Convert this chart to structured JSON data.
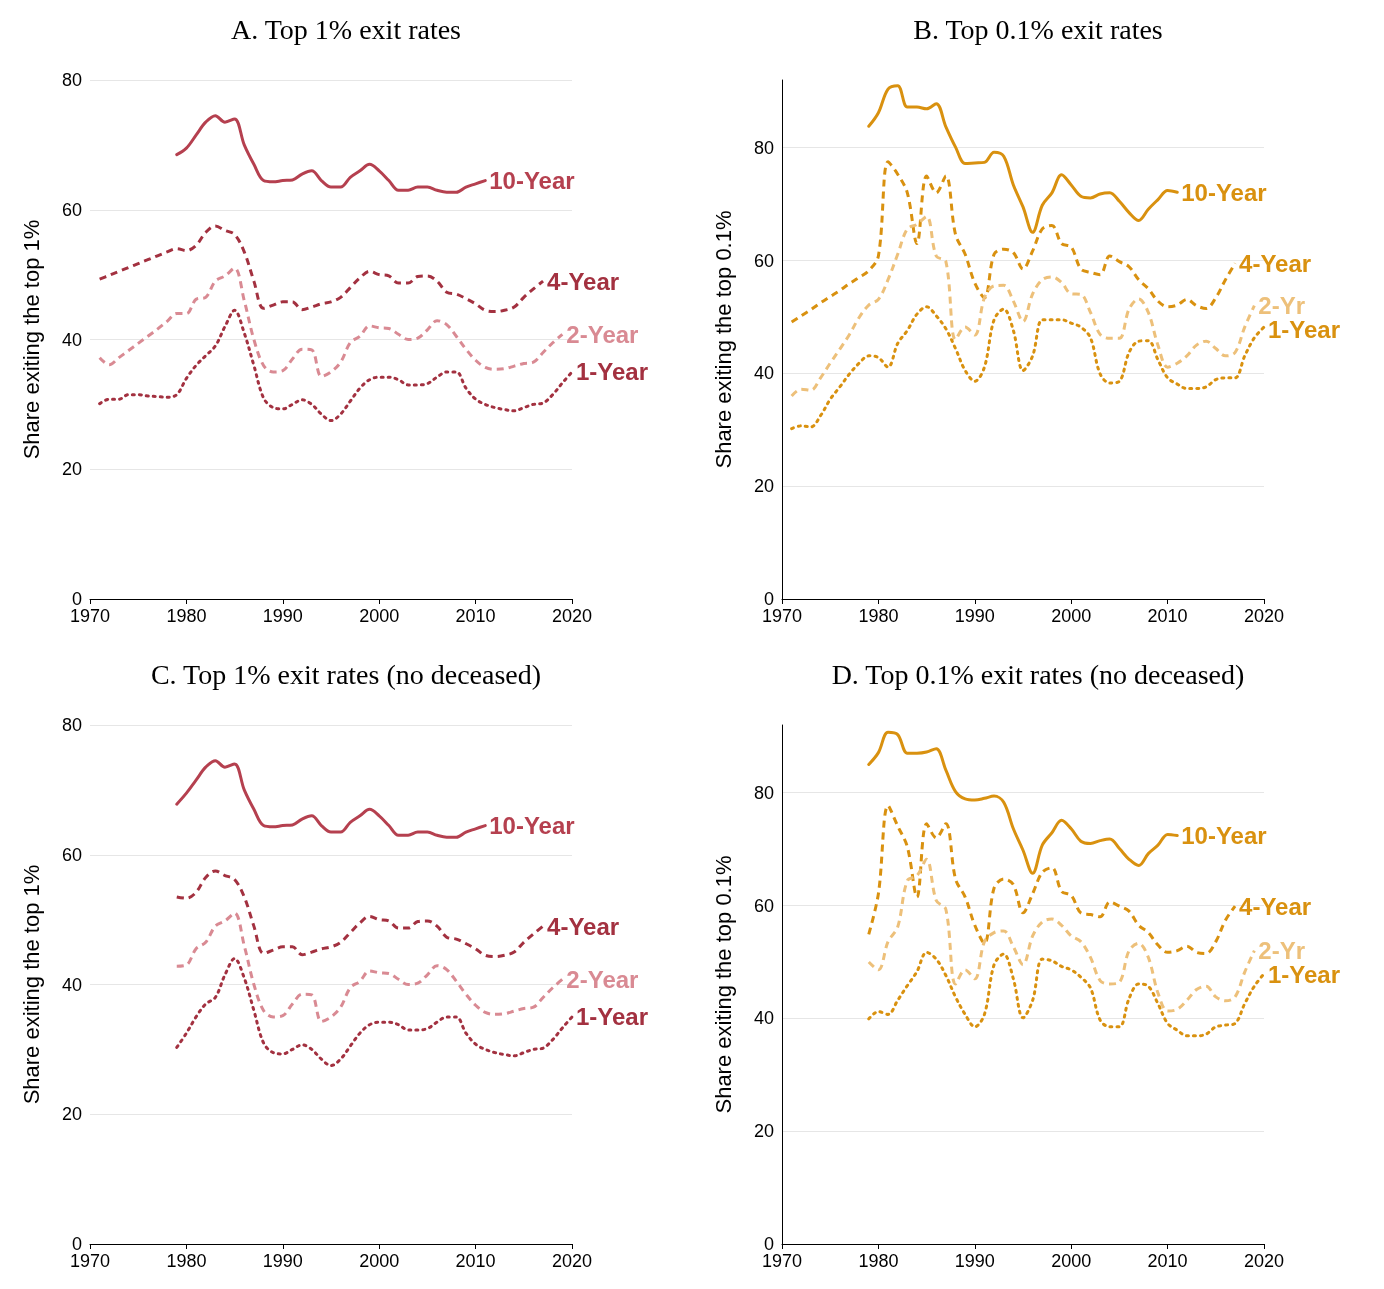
{
  "chart_data": [
    {
      "type": "line",
      "title": "A. Top 1% exit rates",
      "ylabel": "Share exiting the top 1%",
      "xlim": [
        1970,
        2020
      ],
      "xticks": [
        1970,
        1980,
        1990,
        2000,
        2010,
        2020
      ],
      "ylim": [
        0,
        80
      ],
      "yticks": [
        0,
        20,
        40,
        60,
        80
      ],
      "grid": "y",
      "series": [
        {
          "name": "10-Year",
          "color": "#b5404f",
          "line_style": "solid",
          "x": [
            1979,
            1980,
            1981,
            1982,
            1983,
            1984,
            1985,
            1986,
            1987,
            1988,
            1989,
            1990,
            1991,
            1992,
            1993,
            1994,
            1995,
            1996,
            1997,
            1998,
            1999,
            2000,
            2001,
            2002,
            2003,
            2004,
            2005,
            2006,
            2007,
            2008,
            2009,
            2010,
            2011
          ],
          "values": [
            68.5,
            69.5,
            71.5,
            73.5,
            74.5,
            73.5,
            74,
            70,
            67,
            64.5,
            64.3,
            64.5,
            64.6,
            65.5,
            66,
            64.5,
            63.5,
            63.5,
            65,
            66,
            67,
            66,
            64.5,
            63,
            63,
            63.5,
            63.5,
            63,
            62.7,
            62.7,
            63.5,
            64,
            64.5
          ]
        },
        {
          "name": "4-Year",
          "color": "#a33140",
          "line_style": "dashed",
          "x": [
            1971,
            1972,
            1973,
            1974,
            1975,
            1976,
            1977,
            1978,
            1979,
            1980,
            1981,
            1982,
            1983,
            1984,
            1985,
            1986,
            1987,
            1988,
            1989,
            1990,
            1991,
            1992,
            1993,
            1994,
            1995,
            1996,
            1997,
            1998,
            1999,
            2000,
            2001,
            2002,
            2003,
            2004,
            2005,
            2006,
            2007,
            2008,
            2009,
            2010,
            2011,
            2012,
            2013,
            2014,
            2015,
            2016,
            2017
          ],
          "values": [
            49.3,
            49.9,
            50.5,
            51.1,
            51.7,
            52.3,
            52.9,
            53.5,
            54,
            53.7,
            54.5,
            56.5,
            57.5,
            56.8,
            56.2,
            53.5,
            49,
            44.8,
            45.3,
            45.8,
            45.8,
            44.6,
            45,
            45.5,
            45.8,
            46.5,
            48,
            49.5,
            50.5,
            50,
            49.8,
            48.7,
            48.7,
            49.7,
            49.8,
            49,
            47.3,
            47,
            46.3,
            45.5,
            44.5,
            44.3,
            44.5,
            45,
            46.5,
            47.8,
            49
          ]
        },
        {
          "name": "2-Year",
          "color": "#d98a93",
          "line_style": "dashed",
          "x": [
            1971,
            1972,
            1973,
            1974,
            1975,
            1976,
            1977,
            1978,
            1979,
            1980,
            1981,
            1982,
            1983,
            1984,
            1985,
            1986,
            1987,
            1988,
            1989,
            1990,
            1991,
            1992,
            1993,
            1994,
            1995,
            1996,
            1997,
            1998,
            1999,
            2000,
            2001,
            2002,
            2003,
            2004,
            2005,
            2006,
            2007,
            2008,
            2009,
            2010,
            2011,
            2012,
            2013,
            2014,
            2015,
            2016,
            2017,
            2018,
            2019
          ],
          "values": [
            37.2,
            36.1,
            37.2,
            38.3,
            39.4,
            40.5,
            41.6,
            42.8,
            44,
            44,
            46.2,
            46.5,
            49,
            49.8,
            51,
            46,
            40,
            36,
            35,
            35.2,
            37,
            38.5,
            38.4,
            34.3,
            35,
            36.5,
            39.5,
            40.5,
            42.1,
            41.8,
            41.7,
            40.8,
            40,
            40.2,
            41.5,
            42.9,
            42.3,
            40.5,
            38.5,
            36.8,
            35.7,
            35.4,
            35.5,
            35.9,
            36.3,
            36.5,
            38,
            39.5,
            40.8
          ]
        },
        {
          "name": "1-Year",
          "color": "#a33140",
          "line_style": "dotted",
          "x": [
            1971,
            1972,
            1973,
            1974,
            1975,
            1976,
            1977,
            1978,
            1979,
            1980,
            1981,
            1982,
            1983,
            1984,
            1985,
            1986,
            1987,
            1988,
            1989,
            1990,
            1991,
            1992,
            1993,
            1994,
            1995,
            1996,
            1997,
            1998,
            1999,
            2000,
            2001,
            2002,
            2003,
            2004,
            2005,
            2006,
            2007,
            2008,
            2009,
            2010,
            2011,
            2012,
            2013,
            2014,
            2015,
            2016,
            2017,
            2018,
            2019,
            2020
          ],
          "values": [
            30.1,
            30.8,
            30.8,
            31.5,
            31.5,
            31.3,
            31.2,
            31.1,
            31.5,
            34,
            36,
            37.5,
            39,
            42,
            44.5,
            41,
            36,
            31,
            29.5,
            29.3,
            30,
            30.7,
            30,
            28.5,
            27.5,
            28.5,
            30.5,
            32.5,
            33.8,
            34.2,
            34.2,
            33.8,
            33,
            33,
            33.2,
            34.2,
            35,
            35,
            32.5,
            30.8,
            30,
            29.5,
            29.2,
            29,
            29.5,
            30,
            30.2,
            31.5,
            33.3,
            35
          ]
        }
      ]
    },
    {
      "type": "line",
      "title": "B. Top 0.1% exit rates",
      "ylabel": "Share exiting the top 0.1%",
      "xlim": [
        1970,
        2020
      ],
      "xticks": [
        1970,
        1980,
        1990,
        2000,
        2010,
        2020
      ],
      "ylim": [
        0,
        92
      ],
      "yticks": [
        0,
        20,
        40,
        60,
        80
      ],
      "grid": "y",
      "series": [
        {
          "name": "10-Year",
          "color": "#d9910f",
          "line_style": "solid",
          "x": [
            1979,
            1980,
            1981,
            1982,
            1983,
            1984,
            1985,
            1986,
            1987,
            1988,
            1989,
            1990,
            1991,
            1992,
            1993,
            1994,
            1995,
            1996,
            1997,
            1998,
            1999,
            2000,
            2001,
            2002,
            2003,
            2004,
            2005,
            2006,
            2007,
            2008,
            2009,
            2010,
            2011
          ],
          "values": [
            83.8,
            86.2,
            90.4,
            91,
            87.2,
            87.2,
            86.9,
            87.8,
            83.7,
            80.1,
            77.2,
            77.3,
            77.4,
            79.2,
            78.5,
            73.4,
            69.5,
            65,
            69.8,
            72,
            75.2,
            73.4,
            71.4,
            71.1,
            71.8,
            72,
            70.5,
            68.5,
            67.1,
            69.1,
            70.8,
            72.4,
            72.1
          ]
        },
        {
          "name": "4-Year",
          "color": "#d9910f",
          "line_style": "dashed",
          "x": [
            1971,
            1972,
            1973,
            1974,
            1975,
            1976,
            1977,
            1978,
            1979,
            1980,
            1981,
            1982,
            1983,
            1984,
            1985,
            1986,
            1987,
            1988,
            1989,
            1990,
            1991,
            1992,
            1993,
            1994,
            1995,
            1996,
            1997,
            1998,
            1999,
            2000,
            2001,
            2002,
            2003,
            2004,
            2005,
            2006,
            2007,
            2008,
            2009,
            2010,
            2011,
            2012,
            2013,
            2014,
            2015,
            2016,
            2017
          ],
          "values": [
            49.1,
            50.2,
            51.3,
            52.5,
            53.6,
            54.7,
            55.9,
            57,
            58.2,
            60.8,
            77.5,
            75.3,
            72,
            63,
            75,
            72,
            75,
            64.6,
            61.1,
            56,
            53.4,
            61.1,
            62,
            61.4,
            58.5,
            61.7,
            65.6,
            66.2,
            63,
            62.4,
            58.5,
            57.9,
            57.5,
            60.8,
            59.8,
            58.9,
            56.6,
            55,
            52.8,
            51.8,
            52.1,
            53.1,
            52,
            51.5,
            53.4,
            56.6,
            59.5
          ]
        },
        {
          "name": "2-Yr",
          "color": "#edc07a",
          "line_style": "dashed",
          "x": [
            1971,
            1972,
            1973,
            1974,
            1975,
            1976,
            1977,
            1978,
            1979,
            1980,
            1981,
            1982,
            1983,
            1984,
            1985,
            1986,
            1987,
            1988,
            1989,
            1990,
            1991,
            1992,
            1993,
            1994,
            1995,
            1996,
            1997,
            1998,
            1999,
            2000,
            2001,
            2002,
            2003,
            2004,
            2005,
            2006,
            2007,
            2008,
            2009,
            2010,
            2011,
            2012,
            2013,
            2014,
            2015,
            2016,
            2017,
            2018,
            2019
          ],
          "values": [
            36,
            37.2,
            37,
            39.2,
            41.8,
            44.3,
            46.9,
            49.9,
            52.1,
            53.1,
            56.6,
            61.1,
            65.6,
            66.4,
            67.8,
            60.8,
            59.8,
            46,
            48.2,
            46.8,
            53.4,
            55.5,
            55.6,
            52.8,
            49.2,
            54.1,
            56.6,
            57.1,
            56.1,
            54.1,
            54,
            50.8,
            46.9,
            46.2,
            46.2,
            51.4,
            53.2,
            50.8,
            45,
            41.1,
            41.8,
            43.1,
            45,
            45.7,
            44.4,
            43.1,
            43.7,
            48.2,
            52
          ]
        },
        {
          "name": "1-Year",
          "color": "#d9910f",
          "line_style": "dotted",
          "x": [
            1971,
            1972,
            1973,
            1974,
            1975,
            1976,
            1977,
            1978,
            1979,
            1980,
            1981,
            1982,
            1983,
            1984,
            1985,
            1986,
            1987,
            1988,
            1989,
            1990,
            1991,
            1992,
            1993,
            1994,
            1995,
            1996,
            1997,
            1998,
            1999,
            2000,
            2001,
            2002,
            2003,
            2004,
            2005,
            2006,
            2007,
            2008,
            2009,
            2010,
            2011,
            2012,
            2013,
            2014,
            2015,
            2016,
            2017,
            2018,
            2019,
            2020
          ],
          "values": [
            30.2,
            30.7,
            30.5,
            32.5,
            35.4,
            37.6,
            39.9,
            41.8,
            43.1,
            42.8,
            41.1,
            45.3,
            47.6,
            50.5,
            51.8,
            50.2,
            47.9,
            44.4,
            40.5,
            38.6,
            41.1,
            49.5,
            51.4,
            47.6,
            40.5,
            43.1,
            49.5,
            49.5,
            49.5,
            48.9,
            48.2,
            46.3,
            39.9,
            38.3,
            38.6,
            43.7,
            45.7,
            45.8,
            42.4,
            39.2,
            38.1,
            37.3,
            37.3,
            37.6,
            38.9,
            39.2,
            39.2,
            43.1,
            46.3,
            48.2
          ]
        }
      ]
    },
    {
      "type": "line",
      "title": "C. Top 1% exit rates (no deceased)",
      "ylabel": "Share exiting the top 1%",
      "xlim": [
        1970,
        2020
      ],
      "xticks": [
        1970,
        1980,
        1990,
        2000,
        2010,
        2020
      ],
      "ylim": [
        0,
        80
      ],
      "yticks": [
        0,
        20,
        40,
        60,
        80
      ],
      "grid": "y",
      "series": [
        {
          "name": "10-Year",
          "color": "#b5404f",
          "line_style": "solid",
          "x": [
            1979,
            1980,
            1981,
            1982,
            1983,
            1984,
            1985,
            1986,
            1987,
            1988,
            1989,
            1990,
            1991,
            1992,
            1993,
            1994,
            1995,
            1996,
            1997,
            1998,
            1999,
            2000,
            2001,
            2002,
            2003,
            2004,
            2005,
            2006,
            2007,
            2008,
            2009,
            2010,
            2011
          ],
          "values": [
            67.8,
            69.5,
            71.5,
            73.5,
            74.5,
            73.5,
            74,
            70,
            67,
            64.5,
            64.3,
            64.5,
            64.6,
            65.5,
            66,
            64.5,
            63.5,
            63.5,
            65,
            66,
            67,
            66,
            64.5,
            63,
            63,
            63.5,
            63.5,
            63,
            62.7,
            62.7,
            63.5,
            64,
            64.5
          ]
        },
        {
          "name": "4-Year",
          "color": "#a33140",
          "line_style": "dashed",
          "x": [
            1979,
            1980,
            1981,
            1982,
            1983,
            1984,
            1985,
            1986,
            1987,
            1988,
            1989,
            1990,
            1991,
            1992,
            1993,
            1994,
            1995,
            1996,
            1997,
            1998,
            1999,
            2000,
            2001,
            2002,
            2003,
            2004,
            2005,
            2006,
            2007,
            2008,
            2009,
            2010,
            2011,
            2012,
            2013,
            2014,
            2015,
            2016,
            2017
          ],
          "values": [
            53.5,
            53.3,
            54.2,
            56.5,
            57.5,
            56.8,
            56.2,
            53.5,
            49,
            44.8,
            45.3,
            45.8,
            45.8,
            44.6,
            45,
            45.5,
            45.8,
            46.5,
            48,
            49.5,
            50.5,
            50,
            49.8,
            48.7,
            48.7,
            49.7,
            49.8,
            49,
            47.3,
            47,
            46.3,
            45.5,
            44.5,
            44.3,
            44.5,
            45,
            46.5,
            47.8,
            49
          ]
        },
        {
          "name": "2-Year",
          "color": "#d98a93",
          "line_style": "dashed",
          "x": [
            1979,
            1980,
            1981,
            1982,
            1983,
            1984,
            1985,
            1986,
            1987,
            1988,
            1989,
            1990,
            1991,
            1992,
            1993,
            1994,
            1995,
            1996,
            1997,
            1998,
            1999,
            2000,
            2001,
            2002,
            2003,
            2004,
            2005,
            2006,
            2007,
            2008,
            2009,
            2010,
            2011,
            2012,
            2013,
            2014,
            2015,
            2016,
            2017,
            2018,
            2019
          ],
          "values": [
            42.8,
            43,
            45.5,
            46.5,
            49,
            49.8,
            51,
            46,
            40,
            36,
            35,
            35.2,
            37,
            38.5,
            38.4,
            34.3,
            35,
            36.5,
            39.5,
            40.5,
            42.1,
            41.8,
            41.7,
            40.8,
            40,
            40.2,
            41.5,
            42.9,
            42.3,
            40.5,
            38.5,
            36.8,
            35.7,
            35.4,
            35.5,
            35.9,
            36.3,
            36.5,
            38,
            39.5,
            40.8
          ]
        },
        {
          "name": "1-Year",
          "color": "#a33140",
          "line_style": "dotted",
          "x": [
            1979,
            1980,
            1981,
            1982,
            1983,
            1984,
            1985,
            1986,
            1987,
            1988,
            1989,
            1990,
            1991,
            1992,
            1993,
            1994,
            1995,
            1996,
            1997,
            1998,
            1999,
            2000,
            2001,
            2002,
            2003,
            2004,
            2005,
            2006,
            2007,
            2008,
            2009,
            2010,
            2011,
            2012,
            2013,
            2014,
            2015,
            2016,
            2017,
            2018,
            2019,
            2020
          ],
          "values": [
            30.3,
            32.5,
            35,
            37,
            38,
            41.5,
            44,
            41,
            36,
            31,
            29.5,
            29.3,
            30,
            30.7,
            30,
            28.5,
            27.5,
            28.5,
            30.5,
            32.5,
            33.8,
            34.2,
            34.2,
            33.8,
            33,
            33,
            33.2,
            34.2,
            35,
            35,
            32.5,
            30.8,
            30,
            29.5,
            29.2,
            29,
            29.5,
            30,
            30.2,
            31.5,
            33.3,
            35
          ]
        }
      ]
    },
    {
      "type": "line",
      "title": "D. Top 0.1% exit rates (no deceased)",
      "ylabel": "Share exiting the top 0.1%",
      "xlim": [
        1970,
        2020
      ],
      "xticks": [
        1970,
        1980,
        1990,
        2000,
        2010,
        2020
      ],
      "ylim": [
        0,
        92
      ],
      "yticks": [
        0,
        20,
        40,
        60,
        80
      ],
      "grid": "y",
      "series": [
        {
          "name": "10-Year",
          "color": "#d9910f",
          "line_style": "solid",
          "x": [
            1979,
            1980,
            1981,
            1982,
            1983,
            1984,
            1985,
            1986,
            1987,
            1988,
            1989,
            1990,
            1991,
            1992,
            1993,
            1994,
            1995,
            1996,
            1997,
            1998,
            1999,
            2000,
            2001,
            2002,
            2003,
            2004,
            2005,
            2006,
            2007,
            2008,
            2009,
            2010,
            2011
          ],
          "values": [
            85,
            87.1,
            90.7,
            90.3,
            87,
            87,
            87.2,
            87.8,
            84,
            80.2,
            78.9,
            78.7,
            79,
            79.4,
            78.3,
            73.6,
            69.8,
            65.7,
            70.7,
            72.9,
            75.1,
            73.6,
            71.4,
            71,
            71.5,
            71.8,
            70.1,
            68.2,
            67.1,
            69.2,
            70.7,
            72.6,
            72.4
          ]
        },
        {
          "name": "4-Year",
          "color": "#d9910f",
          "line_style": "dashed",
          "x": [
            1979,
            1980,
            1981,
            1982,
            1983,
            1984,
            1985,
            1986,
            1987,
            1988,
            1989,
            1990,
            1991,
            1992,
            1993,
            1994,
            1995,
            1996,
            1997,
            1998,
            1999,
            2000,
            2001,
            2002,
            2003,
            2004,
            2005,
            2006,
            2007,
            2008,
            2009,
            2010,
            2011,
            2012,
            2013,
            2014,
            2015,
            2016,
            2017
          ],
          "values": [
            54.9,
            62.1,
            77.7,
            74.1,
            70.4,
            61.5,
            74.5,
            72,
            74.5,
            64.7,
            61.5,
            56.5,
            53.3,
            63.1,
            64.7,
            63.7,
            58.7,
            62.1,
            65.9,
            66.7,
            62.5,
            61.8,
            58.7,
            58.4,
            58,
            60.6,
            59.9,
            59,
            56.5,
            55.2,
            53,
            51.7,
            52,
            52.8,
            51.7,
            51.5,
            53.6,
            57.4,
            59.9
          ]
        },
        {
          "name": "2-Yr",
          "color": "#edc07a",
          "line_style": "dashed",
          "x": [
            1979,
            1980,
            1981,
            1982,
            1983,
            1984,
            1985,
            1986,
            1987,
            1988,
            1989,
            1990,
            1991,
            1992,
            1993,
            1994,
            1995,
            1996,
            1997,
            1998,
            1999,
            2000,
            2001,
            2002,
            2003,
            2004,
            2005,
            2006,
            2007,
            2008,
            2009,
            2010,
            2011,
            2012,
            2013,
            2014,
            2015,
            2016,
            2017,
            2018,
            2019
          ],
          "values": [
            50,
            48.6,
            53.6,
            56.2,
            64.4,
            65.3,
            68.2,
            60.9,
            59.3,
            46.1,
            48.6,
            47,
            53.6,
            55.2,
            55.5,
            52.7,
            49.5,
            54.6,
            57.1,
            57.6,
            56.5,
            54.6,
            53.6,
            50.8,
            46.7,
            46.1,
            46.4,
            52,
            53.3,
            50.8,
            44.5,
            41.3,
            41.6,
            43.2,
            45.1,
            45.7,
            43.8,
            43.1,
            43.8,
            48.2,
            52
          ]
        },
        {
          "name": "1-Year",
          "color": "#d9910f",
          "line_style": "dotted",
          "x": [
            1979,
            1980,
            1981,
            1982,
            1983,
            1984,
            1985,
            1986,
            1987,
            1988,
            1989,
            1990,
            1991,
            1992,
            1993,
            1994,
            1995,
            1996,
            1997,
            1998,
            1999,
            2000,
            2001,
            2002,
            2003,
            2004,
            2005,
            2006,
            2007,
            2008,
            2009,
            2010,
            2011,
            2012,
            2013,
            2014,
            2015,
            2016,
            2017,
            2018,
            2019,
            2020
          ],
          "values": [
            39.9,
            41.2,
            40.7,
            43.2,
            45.8,
            48.3,
            51.7,
            50.5,
            47.6,
            43.8,
            40.7,
            38.5,
            40.7,
            49.5,
            51.4,
            47,
            40.1,
            43.2,
            50.5,
            50.2,
            49.2,
            48.6,
            47.3,
            45.4,
            39.7,
            38.5,
            38.5,
            43.5,
            46.1,
            45.7,
            42.6,
            39.1,
            37.9,
            36.9,
            36.9,
            37.2,
            38.5,
            38.8,
            39.1,
            42.6,
            45.7,
            47.9
          ]
        }
      ]
    }
  ]
}
